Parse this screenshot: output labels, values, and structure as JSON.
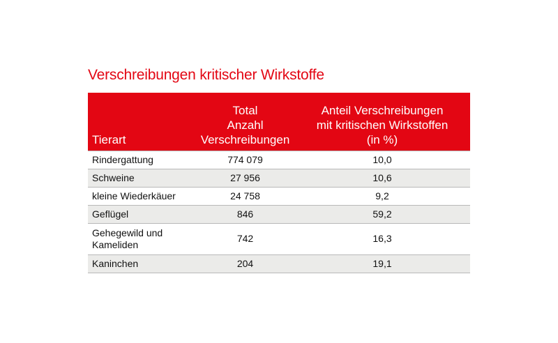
{
  "title": "Verschreibungen kritischer Wirkstoffe",
  "table": {
    "headers": {
      "tierart": "Tierart",
      "total": [
        "Total",
        "Anzahl",
        "Verschreibungen"
      ],
      "anteil": [
        "Anteil Verschreibungen",
        "mit kritischen Wirkstoffen",
        "(in %)"
      ]
    },
    "rows": [
      {
        "tierart": [
          "Rindergattung"
        ],
        "total": "774 079",
        "anteil": "10,0"
      },
      {
        "tierart": [
          "Schweine"
        ],
        "total": "27 956",
        "anteil": "10,6"
      },
      {
        "tierart": [
          "kleine Wiederkäuer"
        ],
        "total": "24 758",
        "anteil": "9,2"
      },
      {
        "tierart": [
          "Geflügel"
        ],
        "total": "846",
        "anteil": "59,2"
      },
      {
        "tierart": [
          "Gehegewild und",
          "Kameliden"
        ],
        "total": "742",
        "anteil": "16,3"
      },
      {
        "tierart": [
          "Kaninchen"
        ],
        "total": "204",
        "anteil": "19,1"
      }
    ]
  },
  "colors": {
    "accent": "#e30613",
    "row_alt": "#ebebe9",
    "rule": "#b8b8b8"
  }
}
